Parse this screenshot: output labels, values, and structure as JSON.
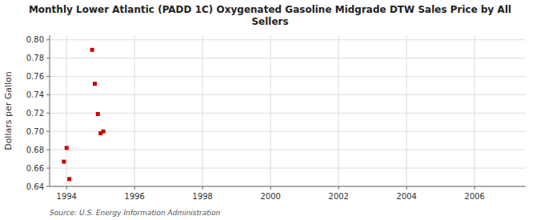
{
  "chart_data": {
    "type": "scatter",
    "title": "Monthly Lower Atlantic (PADD 1C) Oxygenated Gasoline Midgrade DTW Sales Price by All\nSellers",
    "y_label": "Dollars per Gallon",
    "annotations": [
      "Source: U.S. Energy Information Administration"
    ],
    "x": [
      1993.92,
      1994.0,
      1994.08,
      1994.75,
      1994.83,
      1994.92,
      1995.0,
      1995.08
    ],
    "values": [
      0.667,
      0.682,
      0.648,
      0.789,
      0.752,
      0.719,
      0.698,
      0.7
    ],
    "color": "#cc0000",
    "marker": "square",
    "xlim": [
      1993.5,
      2007.5
    ],
    "ylim": [
      0.64,
      0.805
    ],
    "xticks": [
      1994,
      1996,
      1998,
      2000,
      2002,
      2004,
      2006
    ],
    "yticks": [
      0.64,
      0.66,
      0.68,
      {
        "value": 0.7,
        "label": "0.70"
      },
      0.72,
      0.74,
      0.76,
      0.78,
      {
        "value": 0.8,
        "label": "0.80"
      }
    ],
    "grid": true
  }
}
